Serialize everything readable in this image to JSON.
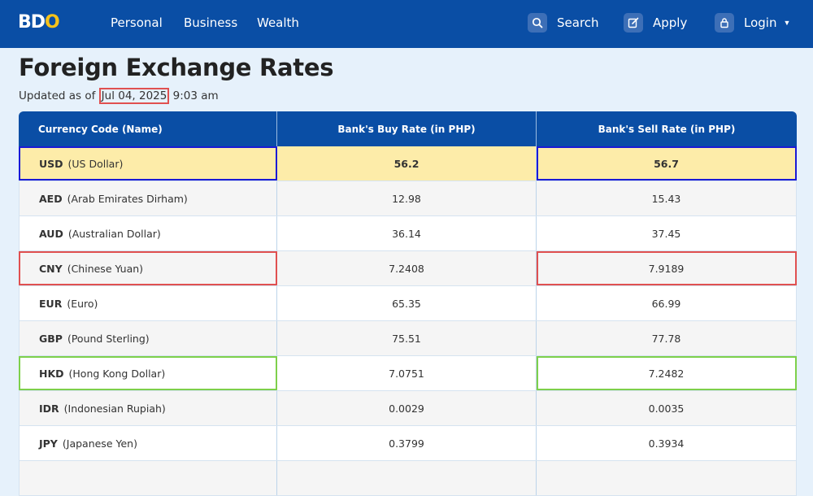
{
  "header": {
    "logo_part1": "BD",
    "logo_part2": "O",
    "nav": [
      "Personal",
      "Business",
      "Wealth"
    ],
    "search_label": "Search",
    "apply_label": "Apply",
    "login_label": "Login"
  },
  "page": {
    "title": "Foreign Exchange Rates",
    "updated_prefix": "Updated as of ",
    "updated_date": "Jul 04, 2025",
    "updated_time": " 9:03 am"
  },
  "table": {
    "headers": [
      "Currency Code (Name)",
      "Bank's Buy Rate (in PHP)",
      "Bank's Sell Rate (in PHP)"
    ],
    "rows": [
      {
        "code": "USD",
        "name": "(US Dollar)",
        "buy": "56.2",
        "sell": "56.7"
      },
      {
        "code": "AED",
        "name": "(Arab Emirates Dirham)",
        "buy": "12.98",
        "sell": "15.43"
      },
      {
        "code": "AUD",
        "name": "(Australian Dollar)",
        "buy": "36.14",
        "sell": "37.45"
      },
      {
        "code": "CNY",
        "name": "(Chinese Yuan)",
        "buy": "7.2408",
        "sell": "7.9189"
      },
      {
        "code": "EUR",
        "name": "(Euro)",
        "buy": "65.35",
        "sell": "66.99"
      },
      {
        "code": "GBP",
        "name": "(Pound Sterling)",
        "buy": "75.51",
        "sell": "77.78"
      },
      {
        "code": "HKD",
        "name": "(Hong Kong Dollar)",
        "buy": "7.0751",
        "sell": "7.2482"
      },
      {
        "code": "IDR",
        "name": "(Indonesian Rupiah)",
        "buy": "0.0029",
        "sell": "0.0035"
      },
      {
        "code": "JPY",
        "name": "(Japanese Yen)",
        "buy": "0.3799",
        "sell": "0.3934"
      },
      {
        "code": "",
        "name": "",
        "buy": "",
        "sell": ""
      }
    ]
  },
  "colors": {
    "brand_blue": "#0a4ea5",
    "logo_yellow": "#f6c21a",
    "highlight_row": "#fdeca9",
    "annot_blue": "#1a1ad6",
    "annot_red": "#e05050",
    "annot_green": "#7ed04b"
  },
  "icons": [
    "search-icon",
    "edit-icon",
    "lock-icon",
    "chevron-down-icon"
  ]
}
